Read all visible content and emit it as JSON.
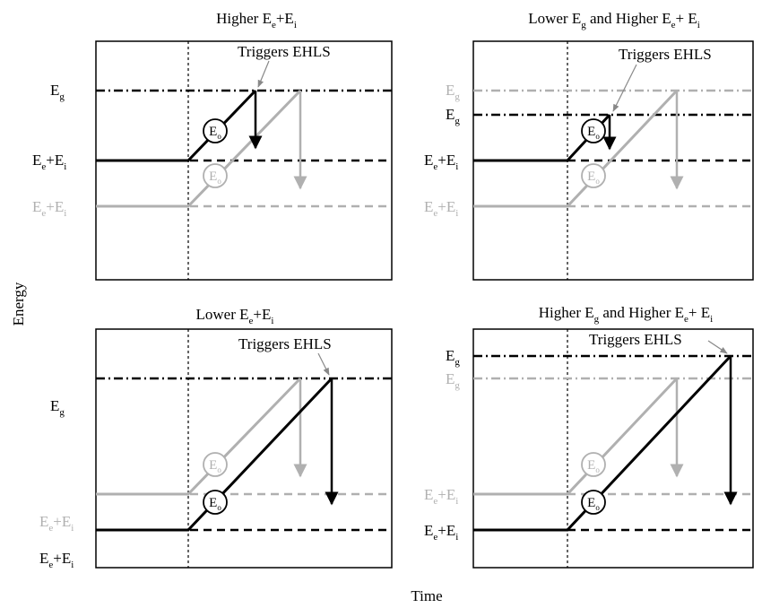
{
  "figure": {
    "axis_x_label": "Time",
    "axis_y_label": "Energy",
    "colors": {
      "black": "#000000",
      "gray": "#b0b0b0"
    },
    "panels": [
      {
        "title": [
          [
            "Higher E",
            ""
          ],
          [
            "e",
            "sub"
          ],
          [
            "+E",
            ""
          ],
          [
            "i",
            "sub"
          ]
        ],
        "annotation": "Triggers EHLS",
        "labels": {
          "eg_black": [
            [
              "E",
              ""
            ],
            [
              "g",
              "sub"
            ]
          ],
          "eg_gray": [],
          "eei_black": [
            [
              "E",
              ""
            ],
            [
              "e",
              "sub"
            ],
            [
              "+E",
              ""
            ],
            [
              "i",
              "sub"
            ]
          ],
          "eei_gray": [
            [
              "E",
              ""
            ],
            [
              "e",
              "sub"
            ],
            [
              "+E",
              ""
            ],
            [
              "i",
              "sub"
            ]
          ]
        },
        "eo_black": [
          [
            "E",
            ""
          ],
          [
            "o",
            "sub"
          ]
        ],
        "eo_gray": [
          [
            "E",
            ""
          ],
          [
            "o",
            "sub"
          ]
        ]
      },
      {
        "title": [
          [
            "Lower E",
            ""
          ],
          [
            "g",
            "sub"
          ],
          [
            " and Higher E",
            ""
          ],
          [
            "e",
            "sub"
          ],
          [
            "+ E",
            ""
          ],
          [
            "i",
            "sub"
          ]
        ],
        "annotation": "Triggers EHLS",
        "labels": {
          "eg_black": [
            [
              "E",
              ""
            ],
            [
              "g",
              "sub"
            ]
          ],
          "eg_gray": [
            [
              "E",
              ""
            ],
            [
              "g",
              "sub"
            ]
          ],
          "eei_black": [
            [
              "E",
              ""
            ],
            [
              "e",
              "sub"
            ],
            [
              "+E",
              ""
            ],
            [
              "i",
              "sub"
            ]
          ],
          "eei_gray": [
            [
              "E",
              ""
            ],
            [
              "e",
              "sub"
            ],
            [
              "+E",
              ""
            ],
            [
              "i",
              "sub"
            ]
          ]
        },
        "eo_black": [
          [
            "E",
            ""
          ],
          [
            "o",
            "sub"
          ]
        ],
        "eo_gray": [
          [
            "E",
            ""
          ],
          [
            "o",
            "sub"
          ]
        ]
      },
      {
        "title": [
          [
            "Lower E",
            ""
          ],
          [
            "e",
            "sub"
          ],
          [
            "+E",
            ""
          ],
          [
            "i",
            "sub"
          ]
        ],
        "annotation": "Triggers EHLS",
        "labels": {
          "eg_black": [
            [
              "E",
              ""
            ],
            [
              "g",
              "sub"
            ]
          ],
          "eg_gray": [],
          "eei_black": [
            [
              "E",
              ""
            ],
            [
              "e",
              "sub"
            ],
            [
              "+E",
              ""
            ],
            [
              "i",
              "sub"
            ]
          ],
          "eei_gray": [
            [
              "E",
              ""
            ],
            [
              "e",
              "sub"
            ],
            [
              "+E",
              ""
            ],
            [
              "i",
              "sub"
            ]
          ]
        },
        "eo_black": [
          [
            "E",
            ""
          ],
          [
            "o",
            "sub"
          ]
        ],
        "eo_gray": [
          [
            "E",
            ""
          ],
          [
            "o",
            "sub"
          ]
        ]
      },
      {
        "title": [
          [
            "Higher E",
            ""
          ],
          [
            "g",
            "sub"
          ],
          [
            " and Higher E",
            ""
          ],
          [
            "e",
            "sub"
          ],
          [
            "+ E",
            ""
          ],
          [
            "i",
            "sub"
          ]
        ],
        "annotation": "Triggers EHLS",
        "labels": {
          "eg_black": [
            [
              "E",
              ""
            ],
            [
              "g",
              "sub"
            ]
          ],
          "eg_gray": [
            [
              "E",
              ""
            ],
            [
              "g",
              "sub"
            ]
          ],
          "eei_black": [
            [
              "E",
              ""
            ],
            [
              "e",
              "sub"
            ],
            [
              "+E",
              ""
            ],
            [
              "i",
              "sub"
            ]
          ],
          "eei_gray": [
            [
              "E",
              ""
            ],
            [
              "e",
              "sub"
            ],
            [
              "+E",
              ""
            ],
            [
              "i",
              "sub"
            ]
          ]
        },
        "eo_black": [
          [
            "E",
            ""
          ],
          [
            "o",
            "sub"
          ]
        ],
        "eo_gray": [
          [
            "E",
            ""
          ],
          [
            "o",
            "sub"
          ]
        ]
      }
    ]
  }
}
